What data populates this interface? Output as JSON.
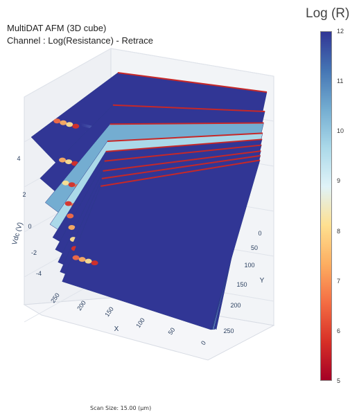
{
  "title_line1": "MultiDAT AFM (3D cube)",
  "title_line2": "Channel : Log(Resistance) - Retrace",
  "footer": "Scan Size: 15.00 (µm)",
  "chart_data": {
    "type": "3d-surface-stack",
    "title": "MultiDAT AFM (3D cube)",
    "subtitle": "Channel : Log(Resistance) - Retrace",
    "xlabel": "X",
    "ylabel": "Y",
    "zlabel": "Vdc (V)",
    "x_ticks": [
      "250",
      "200",
      "150",
      "100",
      "50",
      "0"
    ],
    "y_ticks": [
      "0",
      "50",
      "100",
      "150",
      "200",
      "250"
    ],
    "z_ticks": [
      "4",
      "2",
      "0",
      "-2",
      "-4"
    ],
    "xlim": [
      0,
      256
    ],
    "ylim": [
      0,
      256
    ],
    "zlim": [
      -5,
      5
    ],
    "slices_vdc": [
      5,
      3.5,
      2,
      1,
      0,
      -1,
      -2,
      -3,
      -4
    ],
    "slices_dominant_logR": [
      12,
      12,
      10.5,
      9.8,
      12,
      12,
      12,
      12,
      12
    ],
    "colorbar": {
      "title": "Log (R)",
      "range": [
        5,
        12
      ],
      "ticks": [
        "12",
        "11",
        "10",
        "9",
        "8",
        "7",
        "6",
        "5"
      ],
      "colorscale": "RdYlBu",
      "colors": [
        "#a50026",
        "#d73027",
        "#f46d43",
        "#fdae61",
        "#fee090",
        "#e0f3f8",
        "#abd9e9",
        "#74add1",
        "#4575b4",
        "#313695"
      ]
    }
  }
}
